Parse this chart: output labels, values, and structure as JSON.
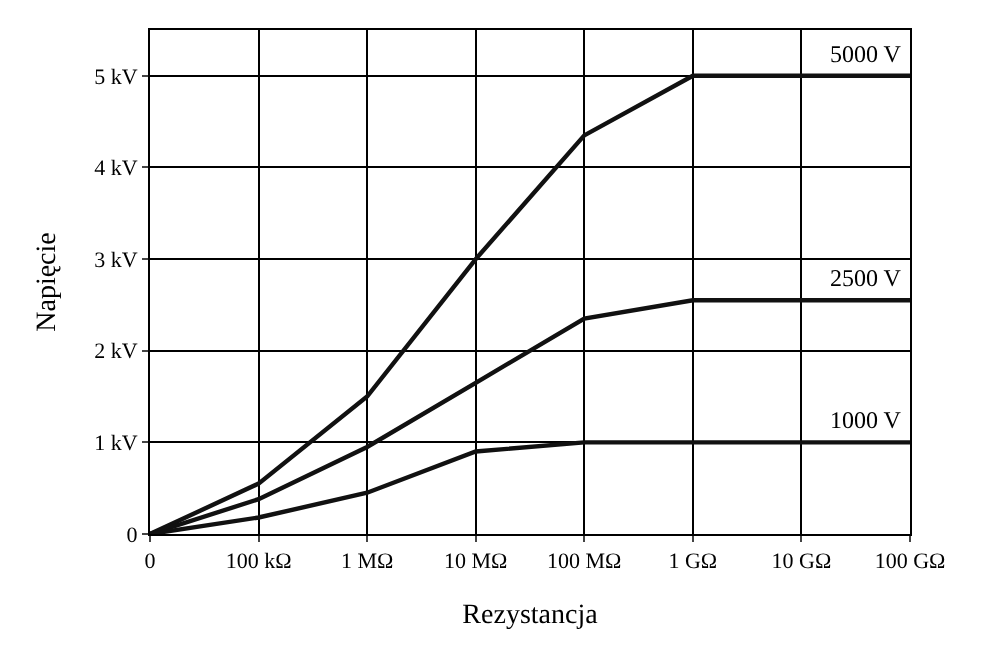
{
  "chart_data": {
    "type": "line",
    "xlabel": "Rezystancja",
    "ylabel": "Napięcie",
    "categories": [
      "0",
      "100 kΩ",
      "1 MΩ",
      "10 MΩ",
      "100 MΩ",
      "1 GΩ",
      "10 GΩ",
      "100 GΩ"
    ],
    "ylim": [
      0,
      5.5
    ],
    "yticks": [
      {
        "value": 0,
        "label": "0"
      },
      {
        "value": 1,
        "label": "1 kV"
      },
      {
        "value": 2,
        "label": "2 kV"
      },
      {
        "value": 3,
        "label": "3 kV"
      },
      {
        "value": 4,
        "label": "4 kV"
      },
      {
        "value": 5,
        "label": "5 kV"
      }
    ],
    "grid": true,
    "legend": false,
    "marker": "none",
    "line_style": "solid",
    "series": [
      {
        "name": "5000 V",
        "color": "#111111",
        "values": [
          0,
          0.55,
          1.5,
          3.0,
          4.35,
          5.0,
          5.0,
          5.0
        ]
      },
      {
        "name": "2500 V",
        "color": "#111111",
        "values": [
          0,
          0.38,
          0.95,
          1.65,
          2.35,
          2.55,
          2.55,
          2.55
        ]
      },
      {
        "name": "1000 V",
        "color": "#111111",
        "values": [
          0,
          0.18,
          0.45,
          0.9,
          1.0,
          1.0,
          1.0,
          1.0
        ]
      }
    ]
  }
}
